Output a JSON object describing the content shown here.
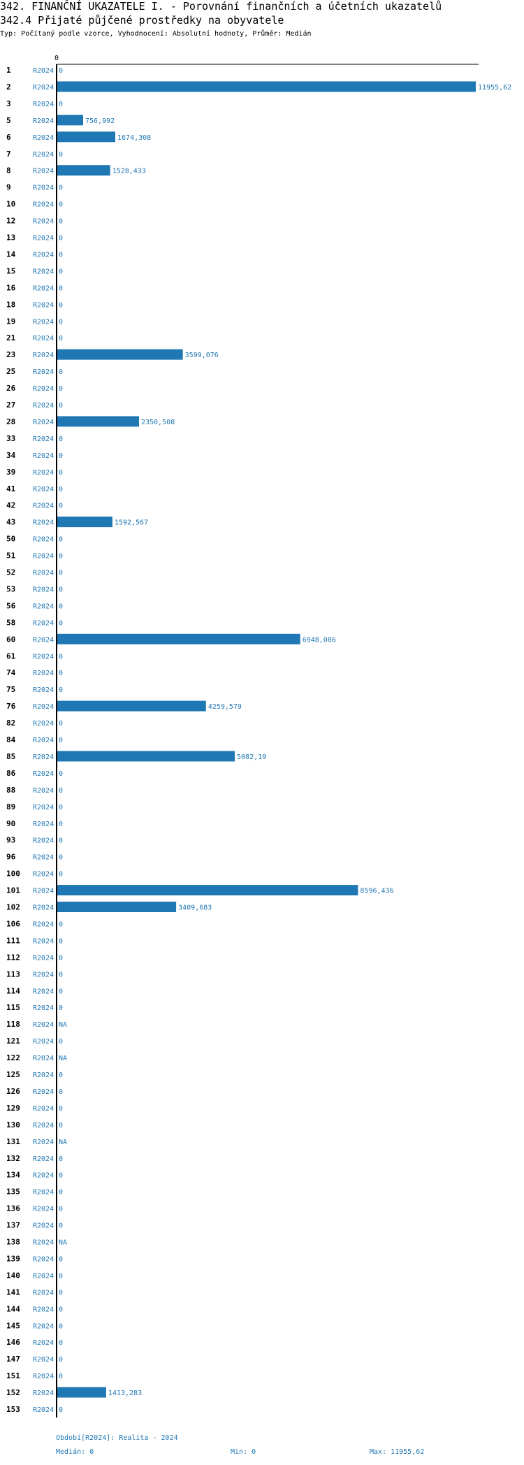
{
  "header": {
    "title": "342. FINANČNÍ UKAZATELE I. - Porovnání finančních a účetních ukazatelů",
    "subtitle": "342.4 Přijaté půjčené prostředky na obyvatele",
    "type_line": "Typ: Počítaný podle vzorce, Vyhodnocení: Absolutní hodnoty, Průměr: Medián"
  },
  "chart_data": {
    "type": "bar",
    "orientation": "horizontal",
    "series_name": "R2024",
    "x_tick": "0",
    "xlim": [
      0,
      11955.62
    ],
    "colors": {
      "bar": "#1f77b4",
      "text": "#1f77b4",
      "axis": "#000000"
    },
    "rows": [
      {
        "id": "1",
        "period": "R2024",
        "value": 0,
        "label": "0"
      },
      {
        "id": "2",
        "period": "R2024",
        "value": 11955.62,
        "label": "11955,62"
      },
      {
        "id": "3",
        "period": "R2024",
        "value": 0,
        "label": "0"
      },
      {
        "id": "5",
        "period": "R2024",
        "value": 756.992,
        "label": "756,992"
      },
      {
        "id": "6",
        "period": "R2024",
        "value": 1674.308,
        "label": "1674,308"
      },
      {
        "id": "7",
        "period": "R2024",
        "value": 0,
        "label": "0"
      },
      {
        "id": "8",
        "period": "R2024",
        "value": 1528.433,
        "label": "1528,433"
      },
      {
        "id": "9",
        "period": "R2024",
        "value": 0,
        "label": "0"
      },
      {
        "id": "10",
        "period": "R2024",
        "value": 0,
        "label": "0"
      },
      {
        "id": "12",
        "period": "R2024",
        "value": 0,
        "label": "0"
      },
      {
        "id": "13",
        "period": "R2024",
        "value": 0,
        "label": "0"
      },
      {
        "id": "14",
        "period": "R2024",
        "value": 0,
        "label": "0"
      },
      {
        "id": "15",
        "period": "R2024",
        "value": 0,
        "label": "0"
      },
      {
        "id": "16",
        "period": "R2024",
        "value": 0,
        "label": "0"
      },
      {
        "id": "18",
        "period": "R2024",
        "value": 0,
        "label": "0"
      },
      {
        "id": "19",
        "period": "R2024",
        "value": 0,
        "label": "0"
      },
      {
        "id": "21",
        "period": "R2024",
        "value": 0,
        "label": "0"
      },
      {
        "id": "23",
        "period": "R2024",
        "value": 3599.076,
        "label": "3599,076"
      },
      {
        "id": "25",
        "period": "R2024",
        "value": 0,
        "label": "0"
      },
      {
        "id": "26",
        "period": "R2024",
        "value": 0,
        "label": "0"
      },
      {
        "id": "27",
        "period": "R2024",
        "value": 0,
        "label": "0"
      },
      {
        "id": "28",
        "period": "R2024",
        "value": 2350.508,
        "label": "2350,508"
      },
      {
        "id": "33",
        "period": "R2024",
        "value": 0,
        "label": "0"
      },
      {
        "id": "34",
        "period": "R2024",
        "value": 0,
        "label": "0"
      },
      {
        "id": "39",
        "period": "R2024",
        "value": 0,
        "label": "0"
      },
      {
        "id": "41",
        "period": "R2024",
        "value": 0,
        "label": "0"
      },
      {
        "id": "42",
        "period": "R2024",
        "value": 0,
        "label": "0"
      },
      {
        "id": "43",
        "period": "R2024",
        "value": 1592.567,
        "label": "1592,567"
      },
      {
        "id": "50",
        "period": "R2024",
        "value": 0,
        "label": "0"
      },
      {
        "id": "51",
        "period": "R2024",
        "value": 0,
        "label": "0"
      },
      {
        "id": "52",
        "period": "R2024",
        "value": 0,
        "label": "0"
      },
      {
        "id": "53",
        "period": "R2024",
        "value": 0,
        "label": "0"
      },
      {
        "id": "56",
        "period": "R2024",
        "value": 0,
        "label": "0"
      },
      {
        "id": "58",
        "period": "R2024",
        "value": 0,
        "label": "0"
      },
      {
        "id": "60",
        "period": "R2024",
        "value": 6948.086,
        "label": "6948,086"
      },
      {
        "id": "61",
        "period": "R2024",
        "value": 0,
        "label": "0"
      },
      {
        "id": "74",
        "period": "R2024",
        "value": 0,
        "label": "0"
      },
      {
        "id": "75",
        "period": "R2024",
        "value": 0,
        "label": "0"
      },
      {
        "id": "76",
        "period": "R2024",
        "value": 4259.579,
        "label": "4259,579"
      },
      {
        "id": "82",
        "period": "R2024",
        "value": 0,
        "label": "0"
      },
      {
        "id": "84",
        "period": "R2024",
        "value": 0,
        "label": "0"
      },
      {
        "id": "85",
        "period": "R2024",
        "value": 5082.19,
        "label": "5082,19"
      },
      {
        "id": "86",
        "period": "R2024",
        "value": 0,
        "label": "0"
      },
      {
        "id": "88",
        "period": "R2024",
        "value": 0,
        "label": "0"
      },
      {
        "id": "89",
        "period": "R2024",
        "value": 0,
        "label": "0"
      },
      {
        "id": "90",
        "period": "R2024",
        "value": 0,
        "label": "0"
      },
      {
        "id": "93",
        "period": "R2024",
        "value": 0,
        "label": "0"
      },
      {
        "id": "96",
        "period": "R2024",
        "value": 0,
        "label": "0"
      },
      {
        "id": "100",
        "period": "R2024",
        "value": 0,
        "label": "0"
      },
      {
        "id": "101",
        "period": "R2024",
        "value": 8596.436,
        "label": "8596,436"
      },
      {
        "id": "102",
        "period": "R2024",
        "value": 3409.683,
        "label": "3409,683"
      },
      {
        "id": "106",
        "period": "R2024",
        "value": 0,
        "label": "0"
      },
      {
        "id": "111",
        "period": "R2024",
        "value": 0,
        "label": "0"
      },
      {
        "id": "112",
        "period": "R2024",
        "value": 0,
        "label": "0"
      },
      {
        "id": "113",
        "period": "R2024",
        "value": 0,
        "label": "0"
      },
      {
        "id": "114",
        "period": "R2024",
        "value": 0,
        "label": "0"
      },
      {
        "id": "115",
        "period": "R2024",
        "value": 0,
        "label": "0"
      },
      {
        "id": "118",
        "period": "R2024",
        "value": null,
        "label": "NA"
      },
      {
        "id": "121",
        "period": "R2024",
        "value": 0,
        "label": "0"
      },
      {
        "id": "122",
        "period": "R2024",
        "value": null,
        "label": "NA"
      },
      {
        "id": "125",
        "period": "R2024",
        "value": 0,
        "label": "0"
      },
      {
        "id": "126",
        "period": "R2024",
        "value": 0,
        "label": "0"
      },
      {
        "id": "129",
        "period": "R2024",
        "value": 0,
        "label": "0"
      },
      {
        "id": "130",
        "period": "R2024",
        "value": 0,
        "label": "0"
      },
      {
        "id": "131",
        "period": "R2024",
        "value": null,
        "label": "NA"
      },
      {
        "id": "132",
        "period": "R2024",
        "value": 0,
        "label": "0"
      },
      {
        "id": "134",
        "period": "R2024",
        "value": 0,
        "label": "0"
      },
      {
        "id": "135",
        "period": "R2024",
        "value": 0,
        "label": "0"
      },
      {
        "id": "136",
        "period": "R2024",
        "value": 0,
        "label": "0"
      },
      {
        "id": "137",
        "period": "R2024",
        "value": 0,
        "label": "0"
      },
      {
        "id": "138",
        "period": "R2024",
        "value": null,
        "label": "NA"
      },
      {
        "id": "139",
        "period": "R2024",
        "value": 0,
        "label": "0"
      },
      {
        "id": "140",
        "period": "R2024",
        "value": 0,
        "label": "0"
      },
      {
        "id": "141",
        "period": "R2024",
        "value": 0,
        "label": "0"
      },
      {
        "id": "144",
        "period": "R2024",
        "value": 0,
        "label": "0"
      },
      {
        "id": "145",
        "period": "R2024",
        "value": 0,
        "label": "0"
      },
      {
        "id": "146",
        "period": "R2024",
        "value": 0,
        "label": "0"
      },
      {
        "id": "147",
        "period": "R2024",
        "value": 0,
        "label": "0"
      },
      {
        "id": "151",
        "period": "R2024",
        "value": 0,
        "label": "0"
      },
      {
        "id": "152",
        "period": "R2024",
        "value": 1413.283,
        "label": "1413,283"
      },
      {
        "id": "153",
        "period": "R2024",
        "value": 0,
        "label": "0"
      }
    ]
  },
  "footer": {
    "period": "Období[R2024]: Realita - 2024",
    "median": "Medián: 0",
    "min": "Min: 0",
    "max": "Max: 11955,62"
  }
}
